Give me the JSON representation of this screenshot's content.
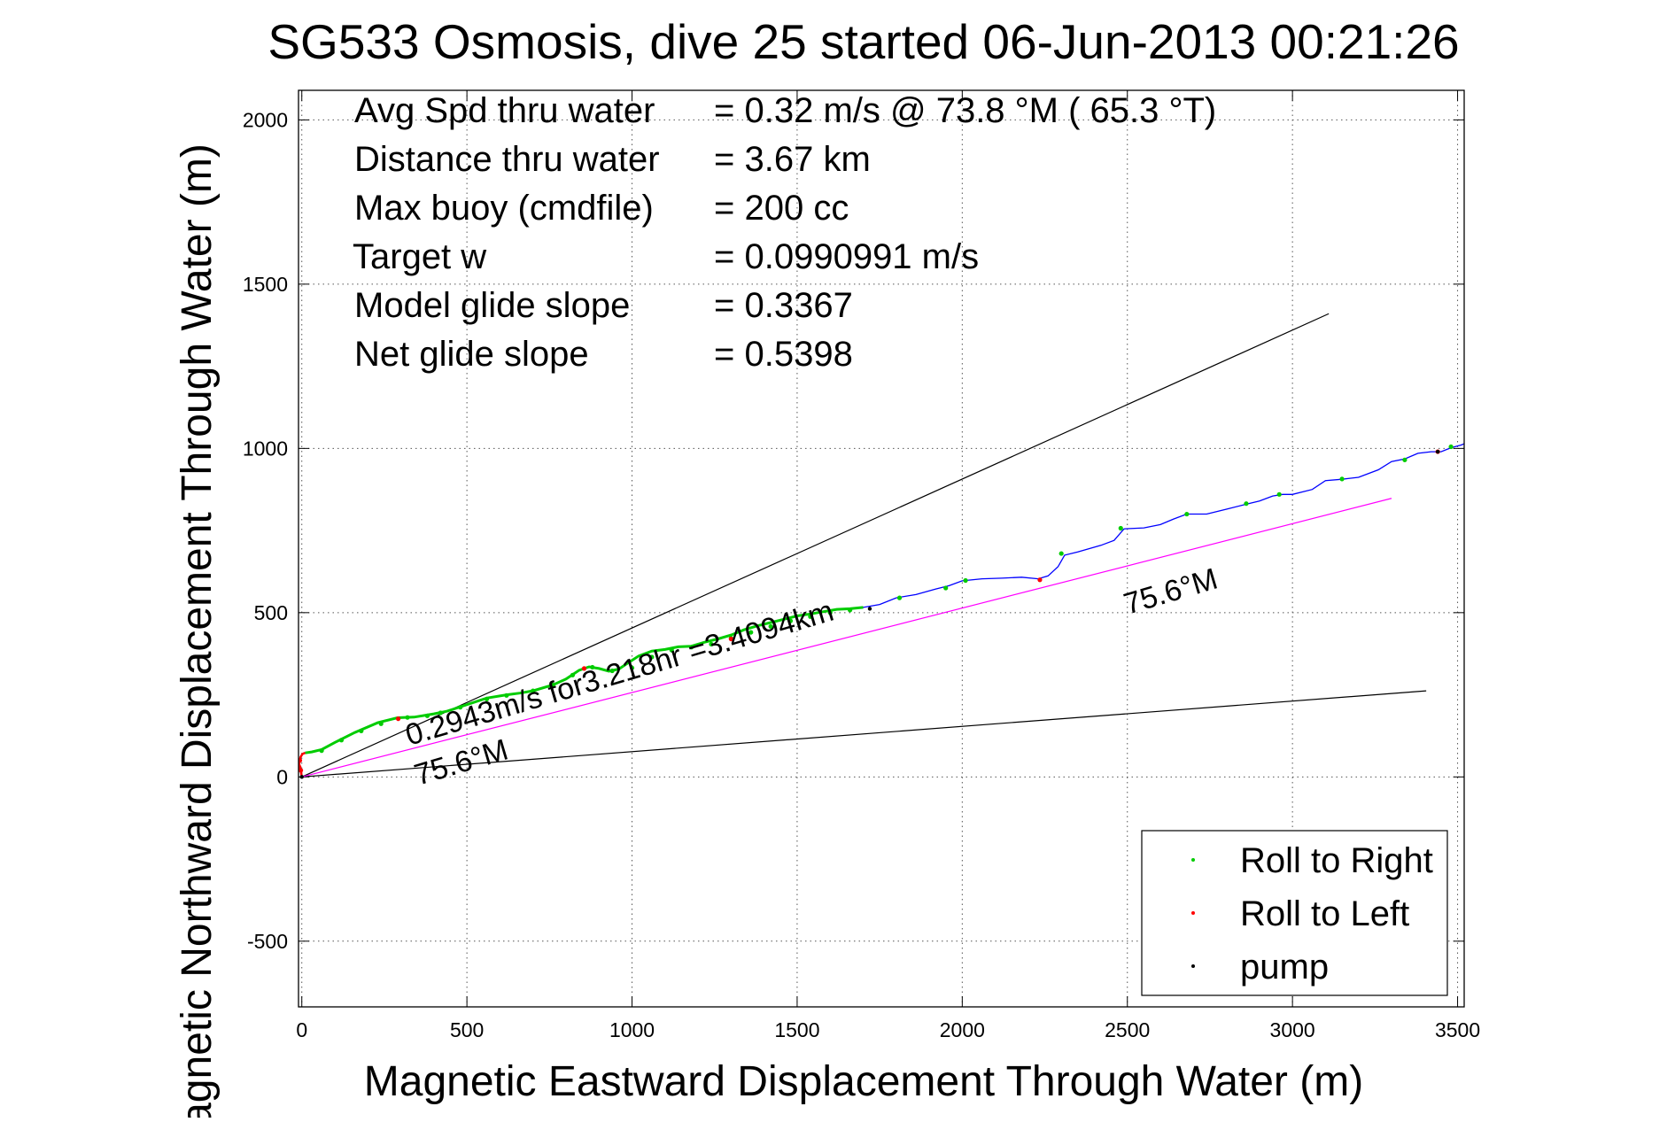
{
  "chart_data": {
    "type": "line",
    "title": "SG533 Osmosis, dive 25 started 06-Jun-2013 00:21:26",
    "xlabel": "Magnetic Eastward Displacement Through Water (m)",
    "ylabel": "Magnetic Northward Displacement Through Water (m)",
    "xlim": [
      -10,
      3520
    ],
    "ylim": [
      -700,
      2090
    ],
    "xticks": [
      0,
      500,
      1000,
      1500,
      2000,
      2500,
      3000,
      3500
    ],
    "yticks": [
      -500,
      0,
      500,
      1000,
      1500,
      2000
    ],
    "grid": true,
    "stats": [
      {
        "label": "Avg Spd thru water",
        "value": "=  0.32 m/s @  73.8 °M ( 65.3 °T)"
      },
      {
        "label": "Distance thru water",
        "value": "=  3.67 km"
      },
      {
        "label": "Max buoy (cmdfile)",
        "value": "= 200 cc"
      },
      {
        "label": "Target w",
        "value": "= 0.0990991 m/s"
      },
      {
        "label": "Model glide slope",
        "value": "= 0.3367"
      },
      {
        "label": "Net glide slope",
        "value": "= 0.5398"
      }
    ],
    "annotations": {
      "speed_text": "0.2943m/s for3.218hr =3.4094km",
      "heading_lower": "75.6°M",
      "heading_upper": "75.6°M"
    },
    "legend": {
      "placement": "bottom-right",
      "entries": [
        {
          "label": "Roll to Right",
          "color": "#00cc00"
        },
        {
          "label": "Roll to Left",
          "color": "#ff0000"
        },
        {
          "label": "pump",
          "color": "#000000"
        }
      ]
    },
    "reference_lines": [
      {
        "name": "glide-slope-upper",
        "color": "#000000",
        "x": [
          0,
          3110
        ],
        "y": [
          0,
          1410
        ]
      },
      {
        "name": "glide-slope-lower",
        "color": "#000000",
        "x": [
          0,
          3405
        ],
        "y": [
          0,
          262
        ]
      },
      {
        "name": "heading-line",
        "color": "#ff00ff",
        "x": [
          0,
          3300
        ],
        "y": [
          0,
          848
        ]
      }
    ],
    "series": [
      {
        "name": "track-displacement",
        "color": "#0000ff",
        "x": [
          0,
          -3,
          -8,
          -4,
          2,
          10,
          30,
          60,
          100,
          160,
          230,
          290,
          340,
          400,
          440,
          500,
          560,
          620,
          660,
          700,
          760,
          800,
          840,
          870,
          900,
          930,
          960,
          980,
          1020,
          1060,
          1100,
          1140,
          1180,
          1220,
          1260,
          1300,
          1340,
          1380,
          1420,
          1460,
          1500,
          1540,
          1580,
          1620,
          1660,
          1700,
          1750,
          1800,
          1860,
          1920,
          1960,
          2000,
          2060,
          2120,
          2180,
          2230,
          2260,
          2290,
          2310,
          2350,
          2420,
          2460,
          2490,
          2550,
          2600,
          2640,
          2680,
          2740,
          2800,
          2860,
          2900,
          2940,
          2970,
          3000,
          3060,
          3100,
          3150,
          3200,
          3260,
          3300,
          3340,
          3380,
          3420,
          3450,
          3480,
          3510,
          3535
        ],
        "y": [
          0,
          20,
          40,
          60,
          70,
          73,
          76,
          83,
          105,
          135,
          165,
          180,
          182,
          192,
          200,
          220,
          240,
          250,
          255,
          262,
          280,
          298,
          325,
          335,
          330,
          322,
          328,
          342,
          368,
          383,
          388,
          396,
          398,
          410,
          420,
          432,
          448,
          460,
          470,
          480,
          490,
          496,
          503,
          510,
          512,
          516,
          525,
          545,
          555,
          572,
          582,
          597,
          603,
          605,
          608,
          603,
          612,
          640,
          675,
          685,
          705,
          720,
          755,
          758,
          768,
          785,
          800,
          800,
          815,
          830,
          840,
          855,
          860,
          860,
          875,
          902,
          906,
          912,
          935,
          960,
          968,
          985,
          990,
          990,
          1002,
          1010,
          1020
        ]
      }
    ],
    "markers": {
      "roll_right_x": [
        60,
        120,
        180,
        240,
        320,
        380,
        420,
        480,
        560,
        620,
        700,
        760,
        820,
        880,
        940,
        1000,
        1060,
        1120,
        1180,
        1240,
        1300,
        1360,
        1420,
        1480,
        1540,
        1600,
        1660,
        1810,
        1950,
        2010,
        2300,
        2480,
        2680,
        2860,
        2960,
        3150,
        3340,
        3480
      ],
      "roll_right_y": [
        80,
        112,
        140,
        162,
        181,
        186,
        195,
        212,
        237,
        248,
        262,
        280,
        310,
        334,
        323,
        332,
        365,
        386,
        395,
        404,
        422,
        440,
        458,
        475,
        488,
        500,
        508,
        545,
        575,
        598,
        680,
        757,
        800,
        832,
        860,
        907,
        965,
        1005
      ],
      "roll_left_x": [
        -8,
        -6,
        -3,
        292,
        855,
        1300,
        2235,
        3440
      ],
      "roll_left_y": [
        30,
        50,
        20,
        177,
        330,
        420,
        600,
        990
      ],
      "pump_x": [
        0,
        1720,
        3440
      ],
      "pump_y": [
        0,
        512,
        990
      ]
    }
  }
}
